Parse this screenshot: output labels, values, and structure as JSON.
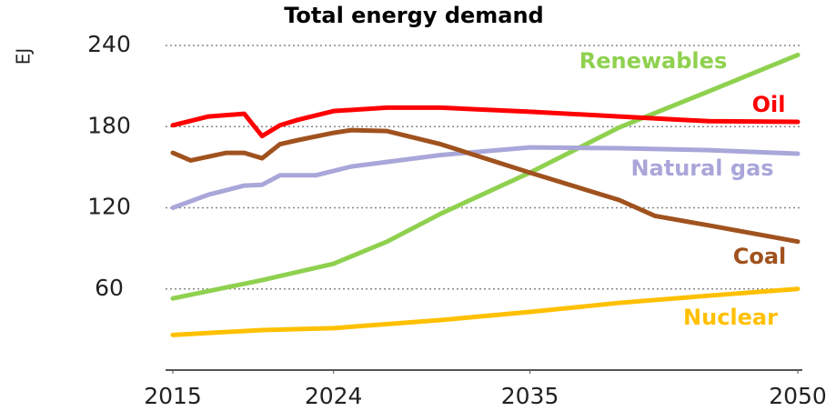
{
  "chart_data": {
    "type": "line",
    "title": "Total energy demand",
    "y_label": "EJ",
    "xlim": [
      2015,
      2050
    ],
    "xticks": [
      2015,
      2024,
      2035,
      2050
    ],
    "ylim": [
      0,
      240
    ],
    "yticks": [
      60,
      120,
      180,
      240
    ],
    "grid": true,
    "series": [
      {
        "name": "Renewables",
        "color": "#8fd14f",
        "x": [
          2015,
          2020,
          2024,
          2027,
          2030,
          2035,
          2040,
          2045,
          2050
        ],
        "values": [
          53,
          66.5,
          78.6,
          95,
          115.6,
          146,
          179.4,
          206,
          233
        ]
      },
      {
        "name": "Oil",
        "color": "#ff0000",
        "x": [
          2015,
          2017,
          2019,
          2020,
          2021,
          2022,
          2024,
          2027,
          2030,
          2035,
          2040,
          2045,
          2050
        ],
        "values": [
          181,
          187.5,
          189.5,
          173,
          181,
          185,
          191.5,
          194,
          194,
          191,
          187.5,
          184,
          183.5
        ]
      },
      {
        "name": "Natural gas",
        "color": "#a9a6d9",
        "x": [
          2015,
          2017,
          2019,
          2020,
          2021,
          2023,
          2025,
          2030,
          2035,
          2040,
          2045,
          2050
        ],
        "values": [
          120,
          129.7,
          136.4,
          137,
          144,
          144,
          150.5,
          159,
          164.6,
          164,
          162.6,
          160
        ]
      },
      {
        "name": "Coal",
        "color": "#a0521e",
        "x": [
          2015,
          2016,
          2018,
          2019,
          2020,
          2021,
          2022,
          2024,
          2025,
          2027,
          2030,
          2035,
          2040,
          2042,
          2045,
          2050
        ],
        "values": [
          160.6,
          155,
          160.6,
          160.6,
          156.6,
          167,
          170,
          175.4,
          177.4,
          176.7,
          167,
          146,
          125.7,
          114,
          107,
          95
        ]
      },
      {
        "name": "Nuclear",
        "color": "#ffc000",
        "x": [
          2015,
          2020,
          2024,
          2030,
          2035,
          2040,
          2045,
          2050
        ],
        "values": [
          26,
          29.6,
          31,
          37,
          43,
          49.7,
          55,
          60
        ]
      }
    ]
  }
}
